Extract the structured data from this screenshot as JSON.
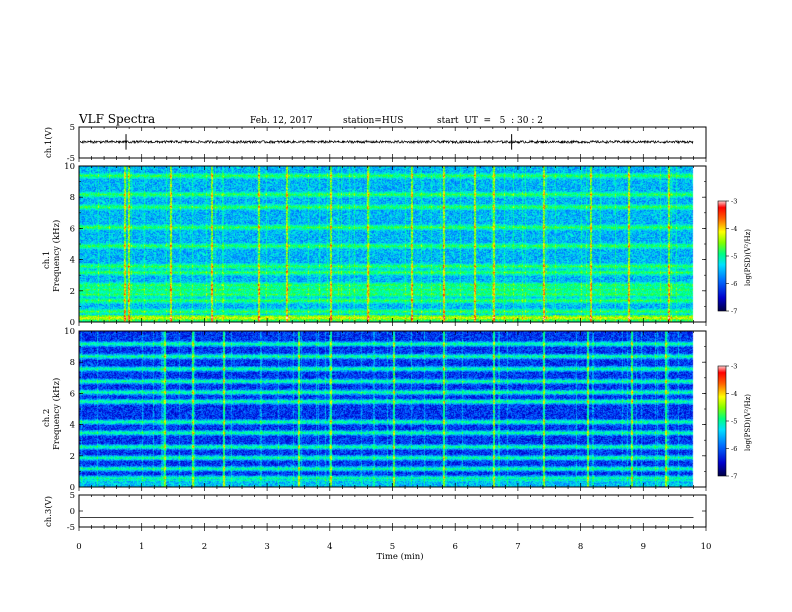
{
  "header": {
    "title": "VLF Spectra",
    "date": "Feb. 12, 2017",
    "station": "station=HUS",
    "start": "start  UT  =   5  : 30 : 2"
  },
  "colors": {
    "background": "#ffffff",
    "axis": "#000000",
    "colormap": [
      "#000066",
      "#0000cc",
      "#0050ff",
      "#00b0ff",
      "#00ffcc",
      "#00ff66",
      "#80ff00",
      "#ffff00",
      "#ff8000",
      "#ff0000",
      "#ffffff"
    ]
  },
  "chart_data": [
    {
      "type": "line",
      "panel": "ch1-waveform",
      "ylabel": "ch.1(V)",
      "ylim": [
        -5,
        5
      ],
      "yticks": [
        "5",
        "-5"
      ],
      "xlim": [
        0,
        10
      ],
      "series": [
        {
          "baseline": 0.2,
          "amplitude": 0.4,
          "spikes_min": [
            0.75,
            6.9
          ]
        }
      ]
    },
    {
      "type": "heatmap",
      "panel": "ch1-spectrogram",
      "ylabel": "ch.1",
      "ylabel2": "Frequency  (kHz)",
      "ylim": [
        0,
        10
      ],
      "yticks": [
        "0",
        "2",
        "4",
        "6",
        "8",
        "10"
      ],
      "xlim": [
        0,
        10
      ],
      "data_end_min": 9.8,
      "emission_bands_khz": [
        0.3,
        0.7,
        1.4,
        1.8,
        2.1,
        2.4,
        3.2,
        3.6,
        4.9,
        6.1,
        7.4,
        8.2,
        9.4
      ],
      "impulses_min": [
        0.72,
        0.78,
        1.45,
        2.1,
        2.85,
        3.3,
        4.0,
        4.6,
        5.3,
        5.8,
        6.3,
        6.6,
        7.4,
        8.15,
        8.75,
        9.4
      ],
      "colorbar": {
        "label": "log(PSD)(V²/Hz)",
        "range": [
          -7,
          -3
        ],
        "ticks": [
          "-3",
          "-4",
          "-5",
          "-6",
          "-7"
        ]
      }
    },
    {
      "type": "heatmap",
      "panel": "ch2-spectrogram",
      "ylabel": "ch.2",
      "ylabel2": "Frequency  (kHz)",
      "ylim": [
        0,
        10
      ],
      "yticks": [
        "0",
        "2",
        "4",
        "6",
        "8",
        "10"
      ],
      "xlim": [
        0,
        10
      ],
      "data_end_min": 9.8,
      "emission_bands_khz": [
        0.6,
        1.2,
        1.9,
        2.6,
        3.5,
        4.2,
        5.5,
        6.1,
        6.8,
        7.6,
        8.4,
        9.2
      ],
      "impulses_min": [
        1.35,
        1.8,
        2.3,
        3.5,
        4.0,
        5.0,
        5.8,
        6.6,
        7.4,
        8.1,
        8.8,
        9.35
      ],
      "colorbar": {
        "label": "log(PSD)(V²/Hz)",
        "range": [
          -7,
          -3
        ],
        "ticks": [
          "-3",
          "-4",
          "-5",
          "-6",
          "-7"
        ]
      }
    },
    {
      "type": "line",
      "panel": "ch3-waveform",
      "ylabel": "ch.3(V)",
      "ylim": [
        -5,
        5
      ],
      "yticks": [
        "5",
        "0",
        "-5"
      ],
      "xlim": [
        0,
        10
      ],
      "series": [
        {
          "baseline": -2.0,
          "amplitude": 0
        }
      ]
    }
  ],
  "xaxis": {
    "label": "Time  (min)",
    "ticks": [
      "0",
      "1",
      "2",
      "3",
      "4",
      "5",
      "6",
      "7",
      "8",
      "9",
      "10"
    ]
  }
}
